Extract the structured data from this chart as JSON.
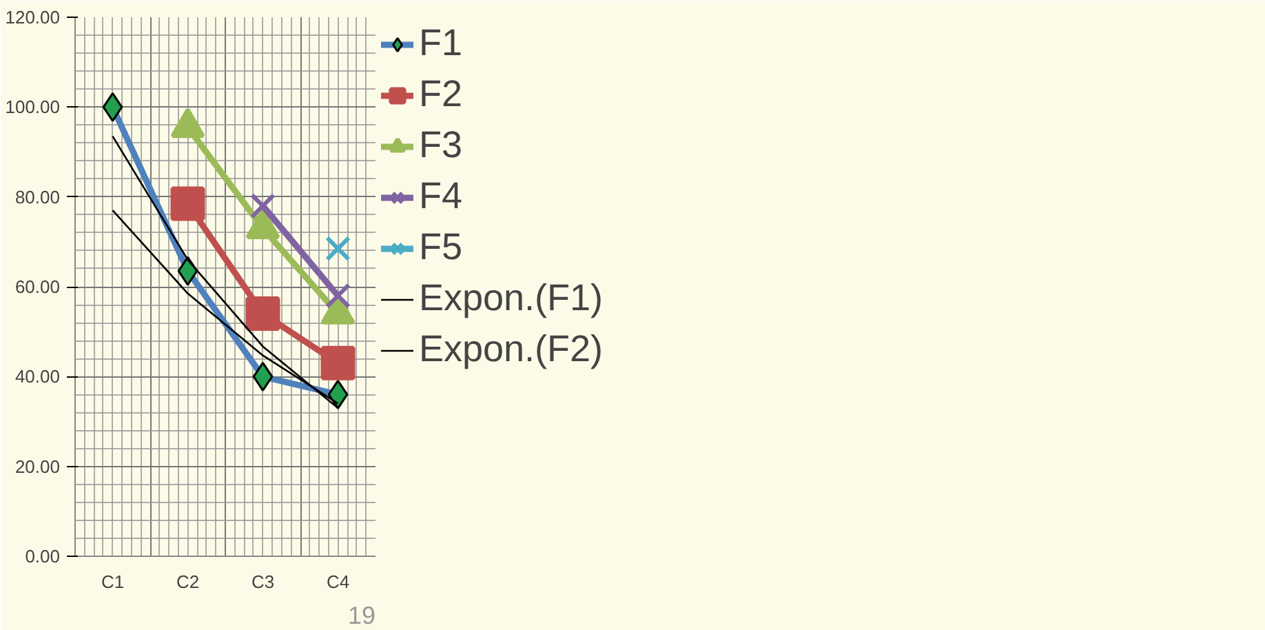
{
  "chart_data": {
    "type": "line",
    "categories": [
      "C1",
      "C2",
      "C3",
      "C4"
    ],
    "series": [
      {
        "name": "F1",
        "color": "#4f81bd",
        "marker": "diamond",
        "values": [
          100,
          63.5,
          40,
          36
        ]
      },
      {
        "name": "F2",
        "color": "#c0504d",
        "marker": "square",
        "values": [
          null,
          78.5,
          54,
          43
        ]
      },
      {
        "name": "F3",
        "color": "#9bbb59",
        "marker": "triangle",
        "values": [
          null,
          95.5,
          73,
          54
        ]
      },
      {
        "name": "F4",
        "color": "#8064a2",
        "marker": "cross",
        "values": [
          null,
          null,
          78,
          58
        ]
      },
      {
        "name": "F5",
        "color": "#4bacc6",
        "marker": "cross",
        "values": [
          null,
          null,
          null,
          68.5
        ]
      },
      {
        "name": "Expon.(F1)",
        "color": "#000000",
        "marker": "none",
        "values": [
          93.5,
          66,
          46.7,
          33
        ]
      },
      {
        "name": "Expon.(F2)",
        "color": "#000000",
        "marker": "none",
        "values": [
          77,
          58.5,
          44.7,
          34
        ]
      }
    ],
    "ylim": [
      0,
      120
    ],
    "yticks": [
      {
        "value": 0,
        "label": "0.00"
      },
      {
        "value": 20,
        "label": "20.00"
      },
      {
        "value": 40,
        "label": "40.00"
      },
      {
        "value": 60,
        "label": "60.00"
      },
      {
        "value": 80,
        "label": "80.00"
      },
      {
        "value": 100,
        "label": "100.00"
      },
      {
        "value": 120,
        "label": "120.00"
      }
    ],
    "grid": true,
    "legend": "right",
    "annotations": [
      "19"
    ]
  }
}
